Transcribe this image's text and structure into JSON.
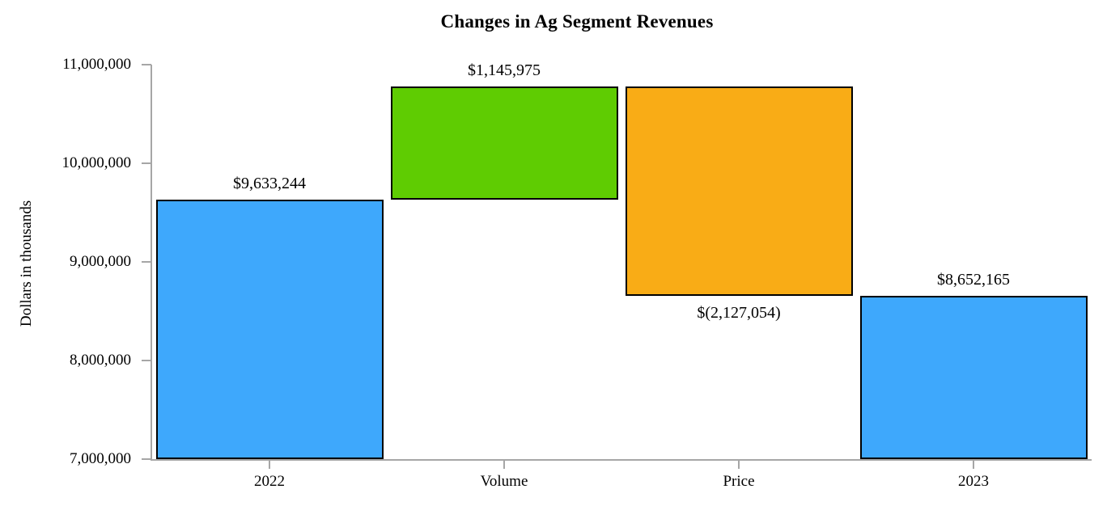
{
  "chart_data": {
    "type": "bar",
    "subtype": "waterfall",
    "title": "Changes in Ag Segment Revenues",
    "ylabel": "Dollars in thousands",
    "xlabel": "",
    "ylim": [
      7000000,
      11000000
    ],
    "grid": false,
    "legend": false,
    "yticks": [
      {
        "value": 11000000,
        "label": "11,000,000"
      },
      {
        "value": 10000000,
        "label": "10,000,000"
      },
      {
        "value": 9000000,
        "label": "9,000,000"
      },
      {
        "value": 8000000,
        "label": "8,000,000"
      },
      {
        "value": 7000000,
        "label": "7,000,000"
      }
    ],
    "categories": [
      "2022",
      "Volume",
      "Price",
      "2023"
    ],
    "bars": [
      {
        "category": "2022",
        "value": 9633244,
        "data_label": "$9,633,244",
        "segment_from": 7000000,
        "segment_to": 9633244,
        "color": "#3EA8FC",
        "label_position": "above"
      },
      {
        "category": "Volume",
        "value": 1145975,
        "data_label": "$1,145,975",
        "segment_from": 9633244,
        "segment_to": 10779219,
        "color": "#5FCC02",
        "label_position": "above"
      },
      {
        "category": "Price",
        "value": -2127054,
        "data_label": "$(2,127,054)",
        "segment_from": 8652165,
        "segment_to": 10779219,
        "color": "#F9AC16",
        "label_position": "below"
      },
      {
        "category": "2023",
        "value": 8652165,
        "data_label": "$8,652,165",
        "segment_from": 7000000,
        "segment_to": 8652165,
        "color": "#3EA8FC",
        "label_position": "above"
      }
    ],
    "colors": {
      "increase": "#5FCC02",
      "decrease": "#F9AC16",
      "total": "#3EA8FC",
      "bar_border": "#000000",
      "axis": "#A6A6A6",
      "text": "#000000",
      "background": "#FFFFFF"
    }
  }
}
